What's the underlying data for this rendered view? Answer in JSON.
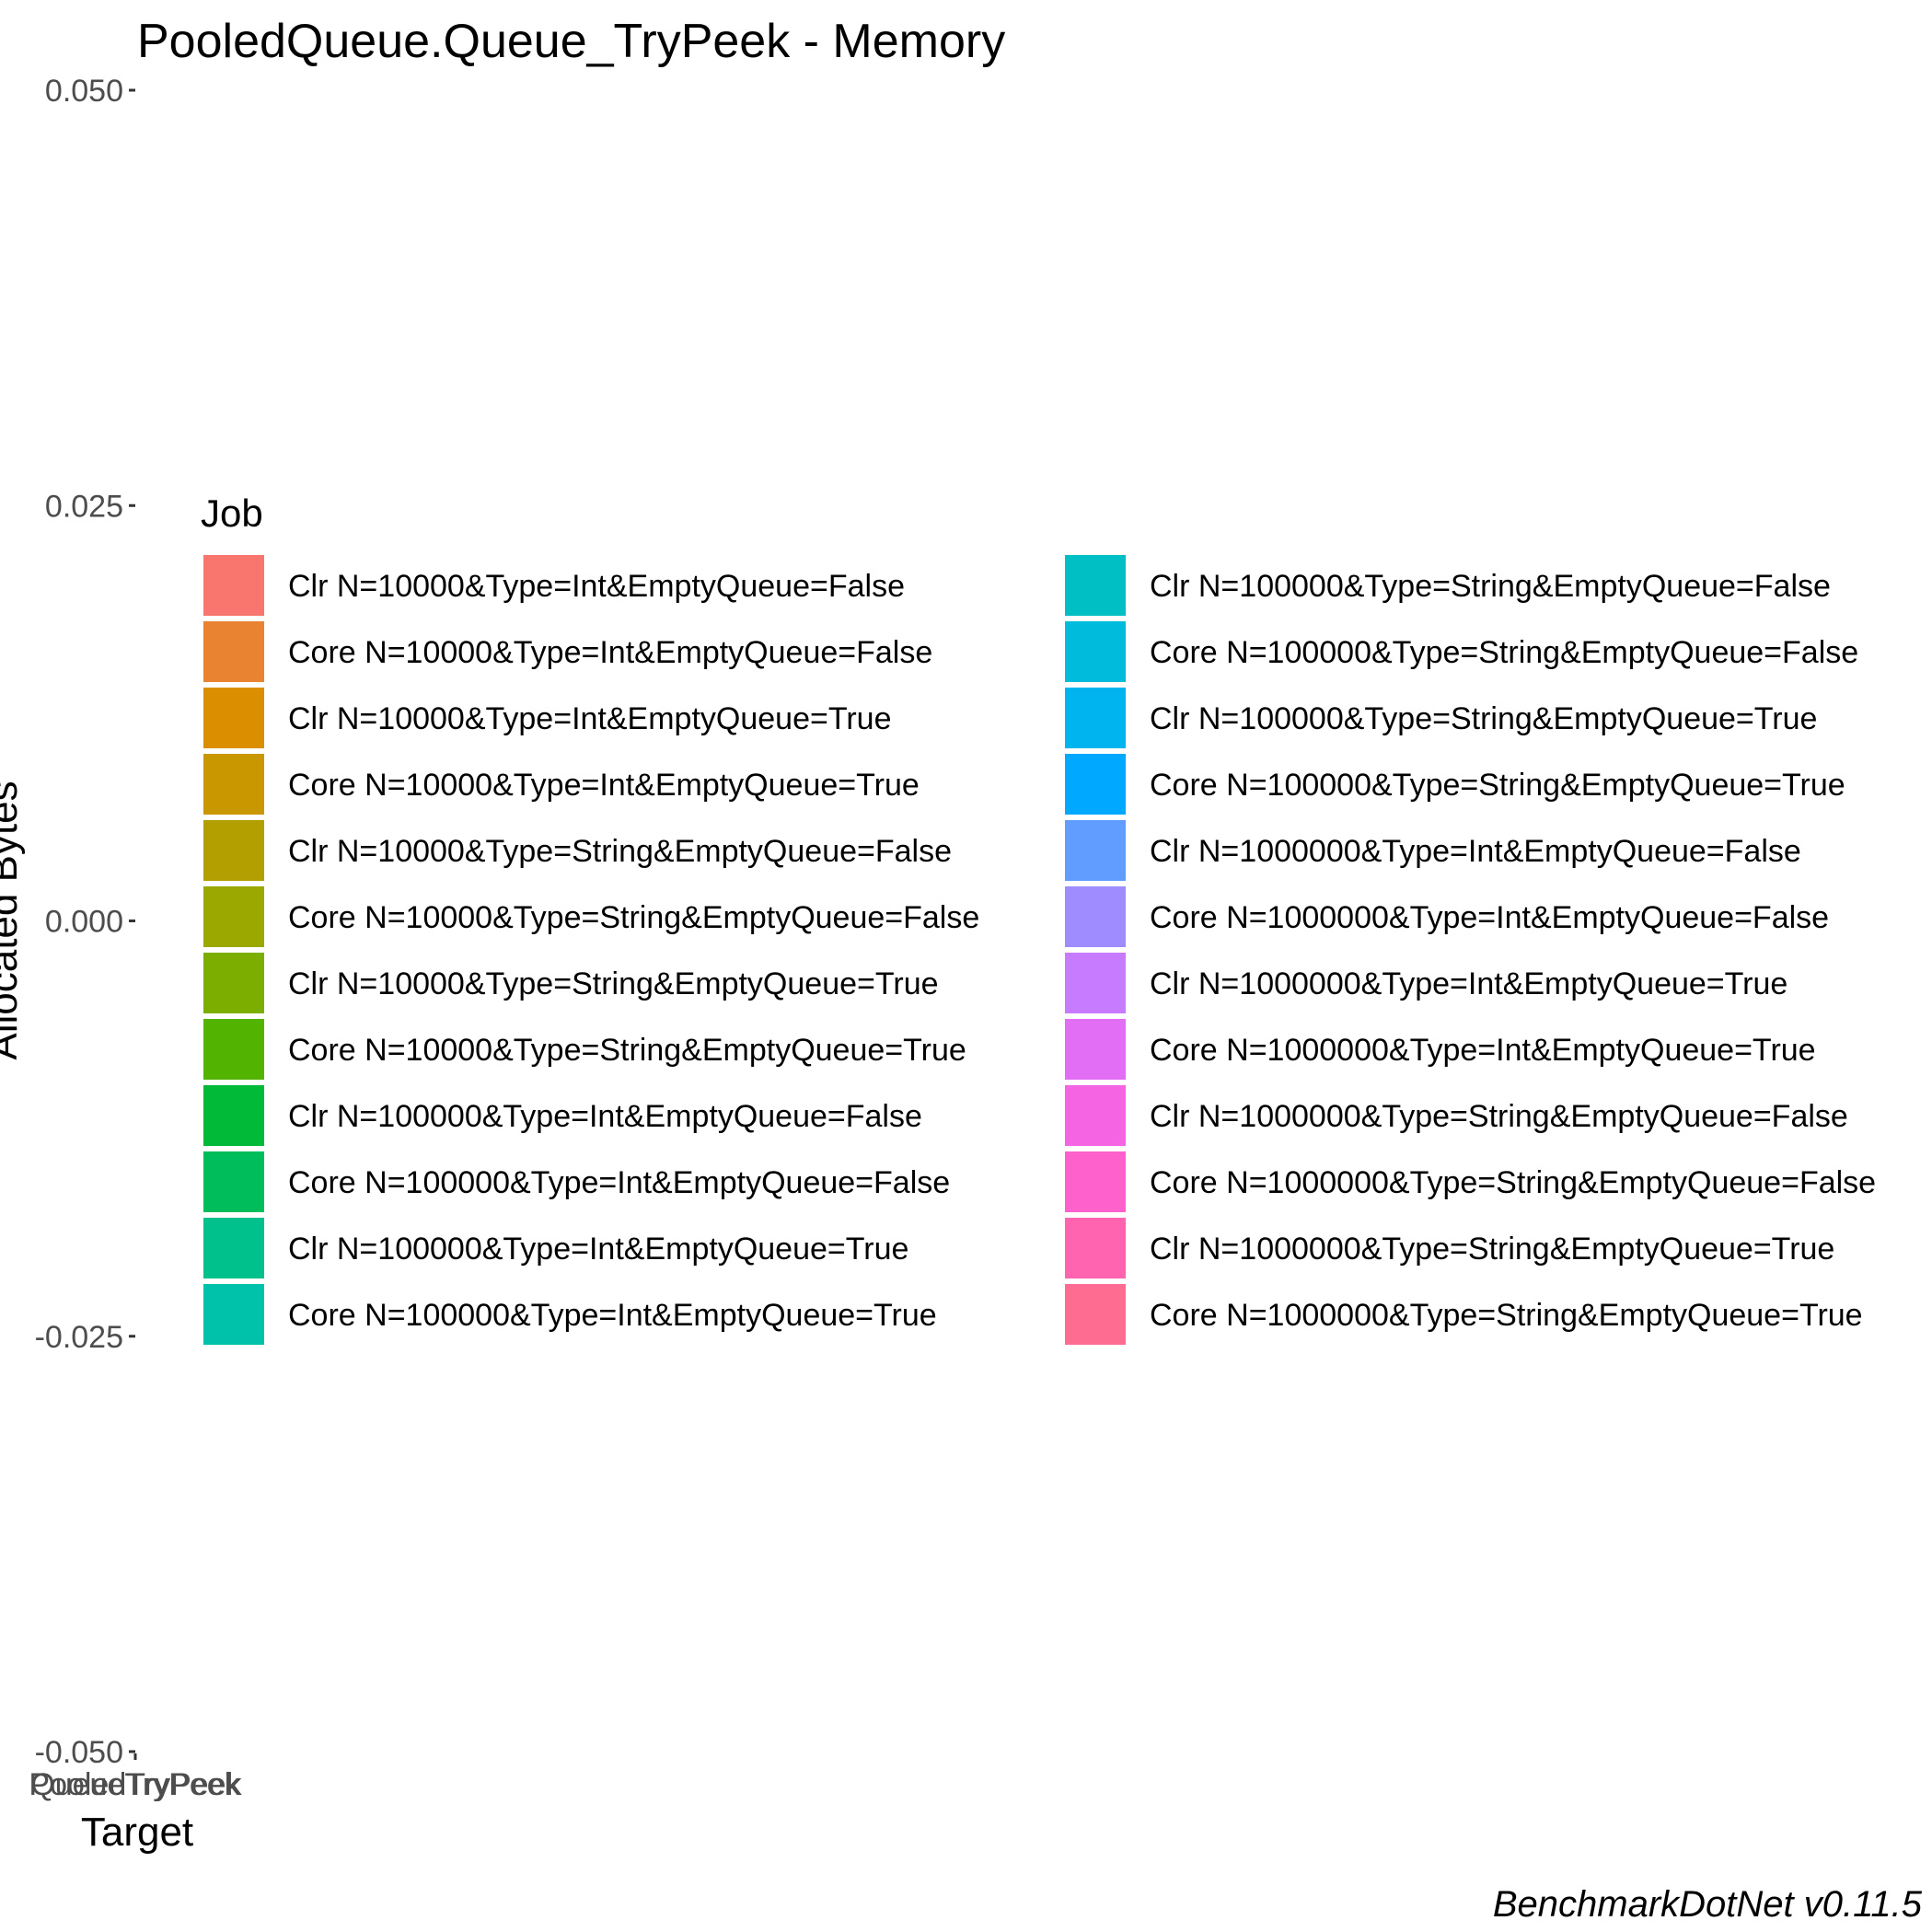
{
  "chart_data": {
    "type": "bar",
    "title": "PooledQueue.Queue_TryPeek - Memory",
    "xlabel": "Target",
    "ylabel": "Allocated Bytes",
    "ylim": [
      -0.05,
      0.05
    ],
    "yticks": [
      "-0.050",
      "-0.025",
      "0.000",
      "0.025",
      "0.050"
    ],
    "categories": [
      "PooledTryPeek",
      "QueueTryPeek"
    ],
    "legend_title": "Job",
    "legend_position": "center",
    "grid": false,
    "series": [
      {
        "name": "Clr N=10000&Type=Int&EmptyQueue=False",
        "color": "#F8766D",
        "values": [
          0,
          0
        ]
      },
      {
        "name": "Core N=10000&Type=Int&EmptyQueue=False",
        "color": "#EA8331",
        "values": [
          0,
          0
        ]
      },
      {
        "name": "Clr N=10000&Type=Int&EmptyQueue=True",
        "color": "#DB8E00",
        "values": [
          0,
          0
        ]
      },
      {
        "name": "Core N=10000&Type=Int&EmptyQueue=True",
        "color": "#C99800",
        "values": [
          0,
          0
        ]
      },
      {
        "name": "Clr N=10000&Type=String&EmptyQueue=False",
        "color": "#B3A000",
        "values": [
          0,
          0
        ]
      },
      {
        "name": "Core N=10000&Type=String&EmptyQueue=False",
        "color": "#9AA800",
        "values": [
          0,
          0
        ]
      },
      {
        "name": "Clr N=10000&Type=String&EmptyQueue=True",
        "color": "#7CAE00",
        "values": [
          0,
          0
        ]
      },
      {
        "name": "Core N=10000&Type=String&EmptyQueue=True",
        "color": "#53B400",
        "values": [
          0,
          0
        ]
      },
      {
        "name": "Clr N=100000&Type=Int&EmptyQueue=False",
        "color": "#00BA38",
        "values": [
          0,
          0
        ]
      },
      {
        "name": "Core N=100000&Type=Int&EmptyQueue=False",
        "color": "#00BD5C",
        "values": [
          0,
          0
        ]
      },
      {
        "name": "Clr N=100000&Type=Int&EmptyQueue=True",
        "color": "#00C08B",
        "values": [
          0,
          0
        ]
      },
      {
        "name": "Core N=100000&Type=Int&EmptyQueue=True",
        "color": "#00C1A9",
        "values": [
          0,
          0
        ]
      },
      {
        "name": "Clr N=100000&Type=String&EmptyQueue=False",
        "color": "#00BFC4",
        "values": [
          0,
          0
        ]
      },
      {
        "name": "Core N=100000&Type=String&EmptyQueue=False",
        "color": "#00BBDC",
        "values": [
          0,
          0
        ]
      },
      {
        "name": "Clr N=100000&Type=String&EmptyQueue=True",
        "color": "#00B4F0",
        "values": [
          0,
          0
        ]
      },
      {
        "name": "Core N=100000&Type=String&EmptyQueue=True",
        "color": "#00A9FF",
        "values": [
          0,
          0
        ]
      },
      {
        "name": "Clr N=1000000&Type=Int&EmptyQueue=False",
        "color": "#619CFF",
        "values": [
          0,
          0
        ]
      },
      {
        "name": "Core N=1000000&Type=Int&EmptyQueue=False",
        "color": "#9F8CFF",
        "values": [
          0,
          0
        ]
      },
      {
        "name": "Clr N=1000000&Type=Int&EmptyQueue=True",
        "color": "#C77CFF",
        "values": [
          0,
          0
        ]
      },
      {
        "name": "Core N=1000000&Type=Int&EmptyQueue=True",
        "color": "#E36EF6",
        "values": [
          0,
          0
        ]
      },
      {
        "name": "Clr N=1000000&Type=String&EmptyQueue=False",
        "color": "#F564E3",
        "values": [
          0,
          0
        ]
      },
      {
        "name": "Core N=1000000&Type=String&EmptyQueue=False",
        "color": "#FF61CC",
        "values": [
          0,
          0
        ]
      },
      {
        "name": "Clr N=1000000&Type=String&EmptyQueue=True",
        "color": "#FF64B0",
        "values": [
          0,
          0
        ]
      },
      {
        "name": "Core N=1000000&Type=String&EmptyQueue=True",
        "color": "#FF6C91",
        "values": [
          0,
          0
        ]
      }
    ]
  },
  "caption": "BenchmarkDotNet v0.11.5"
}
